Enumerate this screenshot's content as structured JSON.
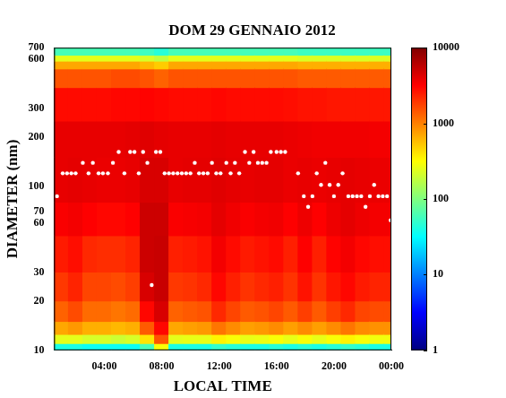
{
  "chart_data": {
    "type": "heatmap",
    "title": "DOM 29 GENNAIO 2012",
    "x_label": "LOCAL TIME",
    "y_label": "DIAMETER (nm)",
    "log": "y",
    "grid": false,
    "xlim": [
      0.5,
      24
    ],
    "xticks": [
      {
        "value": 4,
        "label": "04:00"
      },
      {
        "value": 8,
        "label": "08:00"
      },
      {
        "value": 12,
        "label": "12:00"
      },
      {
        "value": 16,
        "label": "16:00"
      },
      {
        "value": 20,
        "label": "20:00"
      },
      {
        "value": 24,
        "label": "00:00"
      }
    ],
    "ylim": [
      10,
      700
    ],
    "yticks": [
      10,
      20,
      30,
      60,
      70,
      100,
      200,
      300,
      600,
      700
    ],
    "heatmap": {
      "x": [
        0.5,
        1.5,
        2.5,
        3.5,
        4.5,
        5.5,
        6.5,
        7.5,
        8.5,
        9.5,
        10.5,
        11.5,
        12.5,
        13.5,
        14.5,
        15.5,
        16.5,
        17.5,
        18.5,
        19.5,
        20.5,
        21.5,
        22.5,
        23.5,
        24
      ],
      "y": [
        10,
        11,
        12.5,
        15,
        20,
        30,
        50,
        80,
        150,
        250,
        400,
        520,
        580,
        630,
        700
      ],
      "z": [
        [
          40,
          250,
          700,
          1300,
          1900,
          2500,
          3300,
          3900,
          3900,
          2900,
          1500,
          700,
          250,
          60
        ],
        [
          40,
          250,
          800,
          1600,
          2300,
          2800,
          3500,
          4000,
          3900,
          2900,
          1500,
          700,
          250,
          60
        ],
        [
          35,
          220,
          650,
          1200,
          1700,
          2200,
          3200,
          3900,
          3900,
          2900,
          1500,
          700,
          250,
          60
        ],
        [
          35,
          220,
          650,
          1200,
          1700,
          2100,
          3000,
          3800,
          3900,
          2900,
          1500,
          700,
          250,
          60
        ],
        [
          35,
          200,
          600,
          1100,
          1600,
          2100,
          3000,
          3800,
          3900,
          3000,
          1600,
          700,
          250,
          60
        ],
        [
          35,
          220,
          650,
          1200,
          1800,
          2300,
          3200,
          3900,
          4000,
          3000,
          1600,
          700,
          250,
          60
        ],
        [
          60,
          400,
          1400,
          3000,
          4500,
          5000,
          5000,
          4500,
          4200,
          3100,
          1500,
          600,
          220,
          55
        ],
        [
          300,
          1500,
          3000,
          4500,
          5200,
          5200,
          5000,
          4500,
          4000,
          3000,
          1300,
          500,
          180,
          45
        ],
        [
          40,
          250,
          700,
          1300,
          1900,
          2400,
          3300,
          3900,
          3900,
          2900,
          1500,
          700,
          250,
          60
        ],
        [
          40,
          260,
          750,
          1400,
          2000,
          2500,
          3400,
          4000,
          3900,
          2900,
          1500,
          700,
          250,
          60
        ],
        [
          40,
          260,
          800,
          1500,
          2200,
          2700,
          3500,
          4000,
          3900,
          2900,
          1500,
          700,
          250,
          60
        ],
        [
          50,
          350,
          1100,
          2200,
          3000,
          3500,
          4000,
          4200,
          4000,
          3000,
          1500,
          700,
          250,
          60
        ],
        [
          45,
          300,
          900,
          1700,
          2400,
          2900,
          3600,
          4000,
          3900,
          2900,
          1500,
          700,
          250,
          60
        ],
        [
          40,
          260,
          750,
          1400,
          2000,
          2500,
          3300,
          3900,
          3900,
          2900,
          1500,
          700,
          250,
          60
        ],
        [
          40,
          270,
          800,
          1500,
          2200,
          2700,
          3500,
          4000,
          3900,
          2900,
          1500,
          700,
          250,
          60
        ],
        [
          45,
          300,
          900,
          1700,
          2400,
          2900,
          3600,
          4000,
          3900,
          2900,
          1500,
          700,
          250,
          60
        ],
        [
          40,
          260,
          750,
          1400,
          2000,
          2400,
          3200,
          3800,
          3800,
          2800,
          1500,
          700,
          250,
          60
        ],
        [
          45,
          300,
          900,
          1800,
          2700,
          3200,
          3700,
          3900,
          3700,
          2700,
          1400,
          650,
          230,
          55
        ],
        [
          40,
          260,
          750,
          1400,
          2000,
          2400,
          3200,
          3800,
          3600,
          2700,
          1400,
          650,
          230,
          55
        ],
        [
          45,
          300,
          900,
          1800,
          2600,
          3100,
          3700,
          3900,
          3600,
          2600,
          1400,
          650,
          230,
          55
        ],
        [
          50,
          350,
          1100,
          2200,
          3000,
          3500,
          4000,
          4000,
          3600,
          2600,
          1400,
          650,
          230,
          55
        ],
        [
          45,
          300,
          900,
          1700,
          2500,
          3000,
          3700,
          3900,
          3600,
          2600,
          1400,
          650,
          230,
          55
        ],
        [
          40,
          280,
          850,
          1600,
          2300,
          2800,
          3500,
          3800,
          3500,
          2600,
          1400,
          650,
          230,
          55
        ],
        [
          40,
          280,
          850,
          1600,
          2300,
          2800,
          3500,
          3800,
          3500,
          2600,
          1400,
          650,
          230,
          55
        ]
      ]
    },
    "colorbar": {
      "range": [
        1,
        10000
      ],
      "ticks": [
        1,
        10,
        100,
        1000,
        10000
      ],
      "log": true
    },
    "series": [
      {
        "type": "scatter",
        "color": "#ffffff",
        "marker": "circle",
        "x": [
          0.7,
          1.1,
          1.4,
          1.7,
          2.0,
          2.5,
          2.9,
          3.2,
          3.6,
          3.9,
          4.25,
          4.6,
          5.0,
          5.4,
          5.8,
          6.1,
          6.4,
          6.7,
          7.0,
          7.3,
          7.6,
          7.9,
          8.2,
          8.5,
          8.8,
          9.1,
          9.4,
          9.7,
          10.0,
          10.3,
          10.6,
          10.9,
          11.2,
          11.5,
          11.8,
          12.1,
          12.5,
          12.8,
          13.1,
          13.4,
          13.8,
          14.1,
          14.4,
          14.7,
          15.0,
          15.3,
          15.6,
          16.0,
          16.3,
          16.6,
          17.5,
          17.9,
          18.2,
          18.5,
          18.8,
          19.1,
          19.4,
          19.7,
          20.0,
          20.3,
          20.6,
          21.0,
          21.3,
          21.6,
          21.9,
          22.2,
          22.5,
          22.8,
          23.1,
          23.4,
          23.7,
          23.95
        ],
        "values": [
          87,
          120,
          120,
          120,
          120,
          139,
          120,
          139,
          120,
          120,
          120,
          139,
          162,
          120,
          162,
          162,
          120,
          162,
          139,
          25,
          162,
          162,
          120,
          120,
          120,
          120,
          120,
          120,
          120,
          139,
          120,
          120,
          120,
          139,
          120,
          120,
          139,
          120,
          139,
          120,
          162,
          139,
          162,
          139,
          139,
          139,
          162,
          162,
          162,
          162,
          120,
          87,
          75,
          87,
          120,
          102,
          139,
          102,
          87,
          102,
          120,
          87,
          87,
          87,
          87,
          75,
          87,
          102,
          87,
          87,
          87,
          62
        ]
      }
    ]
  }
}
